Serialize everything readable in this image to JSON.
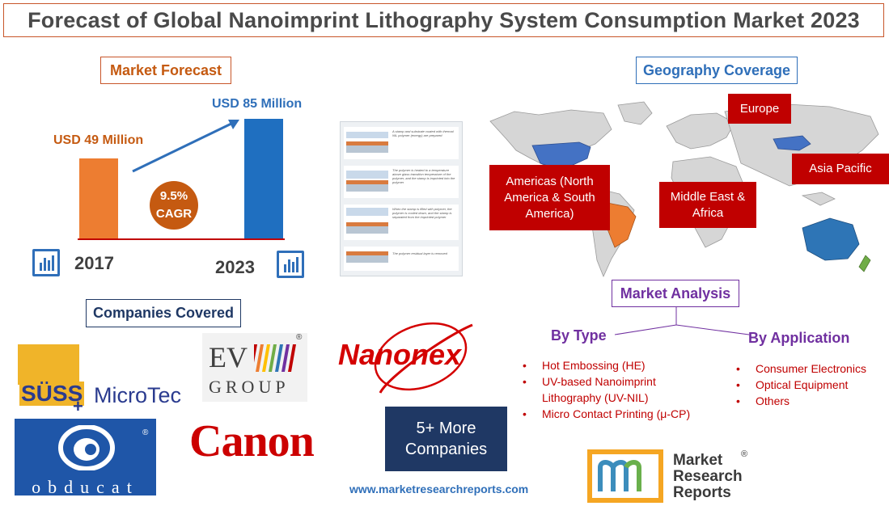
{
  "title": "Forecast of Global Nanoimprint Lithography System Consumption Market 2023",
  "forecast": {
    "heading": "Market Forecast",
    "value_2017": "USD 49 Million",
    "value_2023": "USD 85 Million",
    "year_2017": "2017",
    "year_2023": "2023",
    "cagr_value": "9.5%",
    "cagr_label": "CAGR",
    "chart_values": {
      "2017": 49,
      "2023": 85
    },
    "colors": {
      "bar_2017": "#ed7d31",
      "bar_2023": "#1f6fc0",
      "cagr_circle": "#c55a11"
    }
  },
  "process_diagram": {
    "steps": [
      "A stamp and substrate coated with thermal NIL polymer (energy) are prepared",
      "The polymer is heated to a temperature above glass transition temperature of the polymer, and the stamp is imprinted into the polymer",
      "When the stamp is filled with polymer, the polymer is cooled down, and the stamp is separated from the imprinted polymer",
      "The polymer residual layer is removed"
    ]
  },
  "geography": {
    "heading": "Geography Coverage",
    "regions": {
      "europe": "Europe",
      "americas": "Americas (North America & South America)",
      "middle_east": "Middle East & Africa",
      "asia_pacific": "Asia Pacific"
    },
    "colors": {
      "region_label": "#c00000",
      "highlight": "#4472c4",
      "south_america": "#ed7d31",
      "australia": "#2e75b6"
    }
  },
  "companies": {
    "heading": "Companies Covered",
    "suss": {
      "brand": "SÜSS",
      "product": "MicroTec",
      "plus": "+"
    },
    "ev_group": {
      "top": "EV",
      "bottom": "GROUP",
      "reg": "®"
    },
    "nanonex": "Nanonex",
    "obducat": {
      "name": "obducat",
      "reg": "®"
    },
    "canon": "Canon",
    "more": "5+ More Companies"
  },
  "analysis": {
    "heading": "Market Analysis",
    "by_type": {
      "heading": "By Type",
      "items": [
        "Hot Embossing (HE)",
        "UV-based Nanoimprint Lithography (UV-NIL)",
        "Micro Contact Printing (μ-CP)"
      ]
    },
    "by_application": {
      "heading": "By Application",
      "items": [
        "Consumer Electronics",
        "Optical Equipment",
        "Others"
      ]
    }
  },
  "footer": {
    "website": "www.marketresearchreports.com",
    "logo_line1": "Market",
    "logo_line2": "Research",
    "logo_line3": "Reports",
    "logo_reg": "®"
  }
}
